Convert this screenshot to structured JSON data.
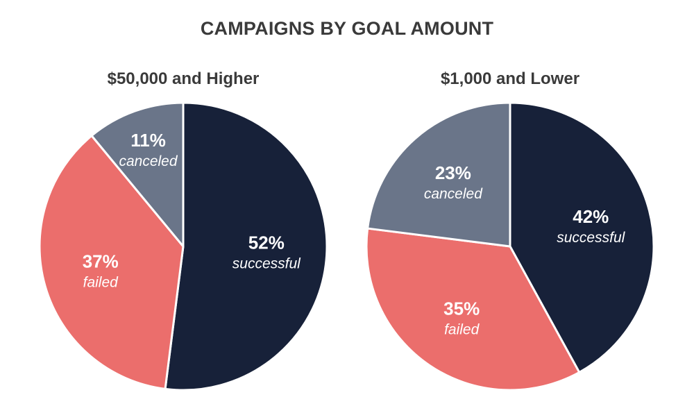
{
  "title": "CAMPAIGNS BY GOAL AMOUNT",
  "colors": {
    "successful": "#172139",
    "failed": "#eb6e6c",
    "canceled": "#6a7589"
  },
  "chart_data": [
    {
      "type": "pie",
      "title": "$50,000 and Higher",
      "slices": [
        {
          "label": "successful",
          "value": 52,
          "text": "52%"
        },
        {
          "label": "failed",
          "value": 37,
          "text": "37%"
        },
        {
          "label": "canceled",
          "value": 11,
          "text": "11%"
        }
      ]
    },
    {
      "type": "pie",
      "title": "$1,000 and Lower",
      "slices": [
        {
          "label": "successful",
          "value": 42,
          "text": "42%"
        },
        {
          "label": "failed",
          "value": 35,
          "text": "35%"
        },
        {
          "label": "canceled",
          "value": 23,
          "text": "23%"
        }
      ]
    }
  ]
}
